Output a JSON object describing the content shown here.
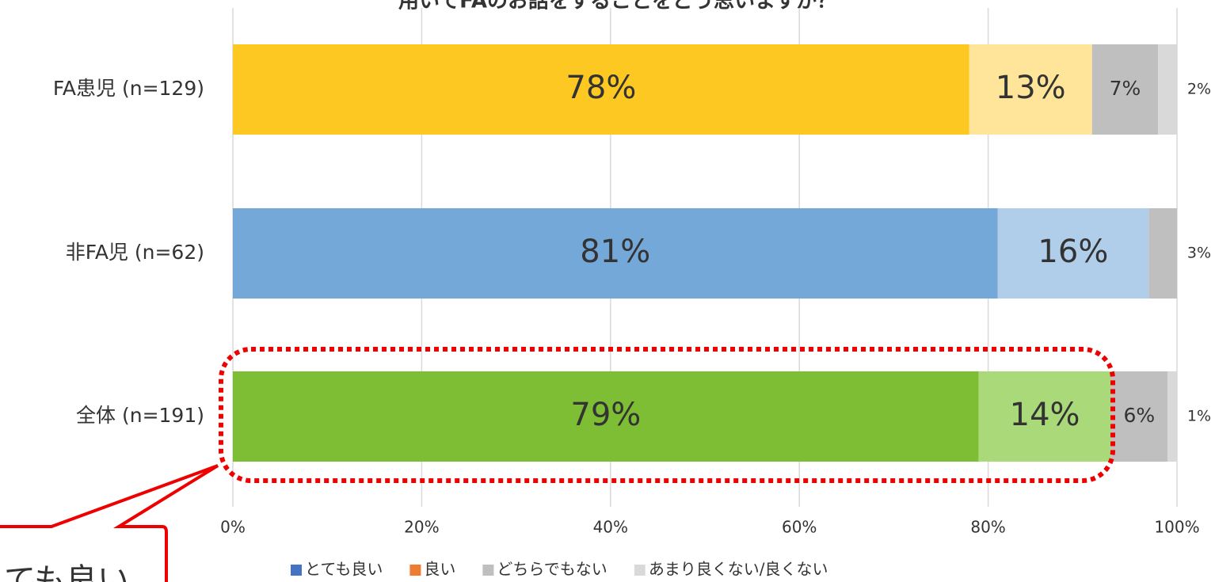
{
  "chart_data": {
    "type": "stacked_bar_horizontal",
    "title": "用いてFAのお話をすることをどう思いますか？",
    "annotation": "ても良い",
    "categories": [
      "FA患児 (n=129)",
      "非FA児 (n=62)",
      "全体 (n=191)"
    ],
    "series": [
      {
        "name": "とても良い",
        "color": "#4472c4",
        "colors": [
          "#fdc822",
          "#74a8d9",
          "#7dbe34"
        ],
        "values": [
          78,
          81,
          79
        ],
        "value_labels": [
          "78%",
          "81%",
          "79%"
        ]
      },
      {
        "name": "良い",
        "color": "#ed7d31",
        "colors": [
          "#fee599",
          "#b0cdea",
          "#a9d978"
        ],
        "values": [
          13,
          16,
          14
        ],
        "value_labels": [
          "13%",
          "16%",
          "14%"
        ]
      },
      {
        "name": "どちらでもない",
        "color": "#bfbfbf",
        "colors": [
          "#bfbfbf",
          "#bfbfbf",
          "#bfbfbf"
        ],
        "values": [
          7,
          3,
          6
        ],
        "value_labels": [
          "7%",
          "3%",
          "6%"
        ]
      },
      {
        "name": "あまり良くない/良くない",
        "color": "#d9d9d9",
        "colors": [
          "#d9d9d9",
          "#d9d9d9",
          "#d9d9d9"
        ],
        "values": [
          2,
          null,
          1
        ],
        "value_labels": [
          "2%",
          null,
          "1%"
        ]
      }
    ],
    "xlim": [
      0,
      100
    ],
    "xticks": [
      {
        "value": 0,
        "label": "0%"
      },
      {
        "value": 20,
        "label": "20%"
      },
      {
        "value": 40,
        "label": "40%"
      },
      {
        "value": 60,
        "label": "60%"
      },
      {
        "value": 80,
        "label": "80%"
      },
      {
        "value": 100,
        "label": "100%"
      }
    ],
    "grid": true,
    "legend": "bottom"
  }
}
